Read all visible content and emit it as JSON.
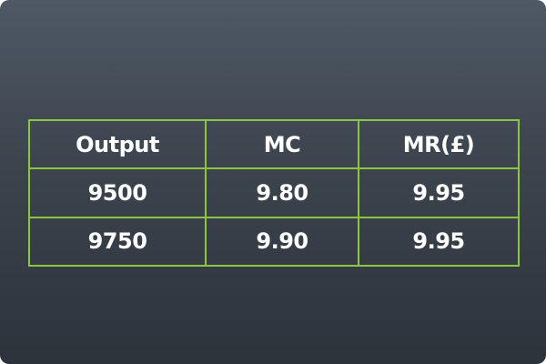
{
  "table": {
    "headers": [
      "Output",
      "MC",
      "MR(£)"
    ],
    "rows": [
      [
        "9500",
        "9.80",
        "9.95"
      ],
      [
        "9750",
        "9.90",
        "9.95"
      ]
    ]
  },
  "colors": {
    "border": "#8cc63f",
    "text": "#ffffff",
    "background_top": "#4e5965",
    "background_bottom": "#2d333b"
  }
}
